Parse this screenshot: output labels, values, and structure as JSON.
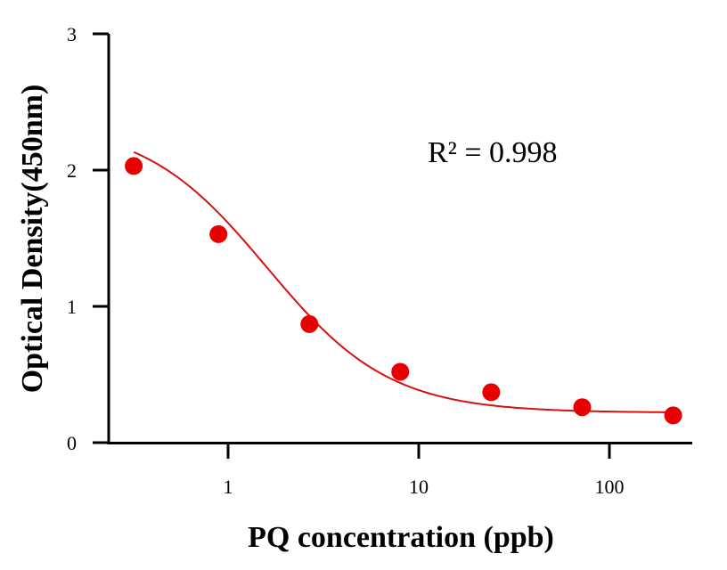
{
  "chart_data": {
    "type": "scatter",
    "title": "",
    "xlabel": "PQ concentration (ppb)",
    "ylabel": "Optical Density(450nm)",
    "xscale": "log",
    "xlim": [
      0.3,
      230
    ],
    "ylim": [
      0,
      3
    ],
    "xticks": [
      1,
      10,
      100
    ],
    "xtick_labels": [
      "1",
      "10",
      "100"
    ],
    "yticks": [
      0,
      1,
      2,
      3
    ],
    "ytick_labels": [
      "0",
      "1",
      "2",
      "3"
    ],
    "grid": false,
    "legend": "none",
    "series": [
      {
        "color": "#e60000",
        "line_color": "#d81010",
        "marker": "circle",
        "x": [
          0.32,
          0.89,
          2.67,
          8.0,
          24.0,
          72.0,
          216.0
        ],
        "y": [
          2.03,
          1.53,
          0.87,
          0.52,
          0.37,
          0.26,
          0.2
        ]
      }
    ],
    "fit_curve": {
      "type": "4PL",
      "A": 2.35,
      "B": 1.35,
      "C": 1.6,
      "D": 0.22
    },
    "annotation": "R² = 0.998"
  }
}
